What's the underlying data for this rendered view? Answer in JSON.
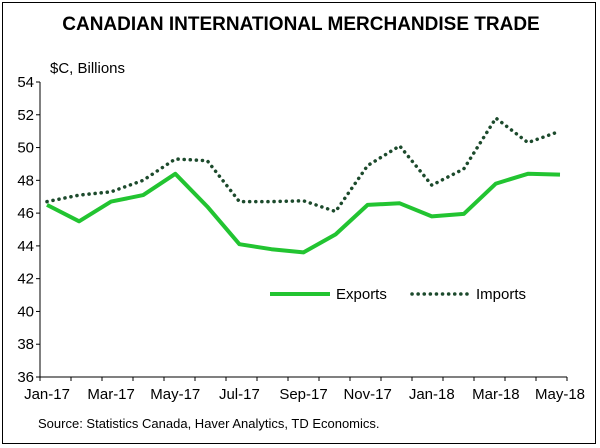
{
  "chart_data": {
    "type": "line",
    "title": "CANADIAN INTERNATIONAL MERCHANDISE TRADE",
    "ylabel": "$C, Billions",
    "xlabel": "",
    "ylim": [
      36,
      54
    ],
    "yticks": [
      36,
      38,
      40,
      42,
      44,
      46,
      48,
      50,
      52,
      54
    ],
    "categories": [
      "Jan-17",
      "Feb-17",
      "Mar-17",
      "Apr-17",
      "May-17",
      "Jun-17",
      "Jul-17",
      "Aug-17",
      "Sep-17",
      "Oct-17",
      "Nov-17",
      "Dec-17",
      "Jan-18",
      "Feb-18",
      "Mar-18",
      "Apr-18",
      "May-18"
    ],
    "xtick_labels": [
      "Jan-17",
      "Mar-17",
      "May-17",
      "Jul-17",
      "Sep-17",
      "Nov-17",
      "Jan-18",
      "Mar-18",
      "May-18"
    ],
    "series": [
      {
        "name": "Exports",
        "style": "solid",
        "color": "#22c431",
        "values": [
          46.5,
          45.5,
          46.7,
          47.1,
          48.4,
          46.4,
          44.1,
          43.8,
          43.6,
          44.7,
          46.5,
          46.6,
          45.8,
          45.95,
          47.8,
          48.4,
          48.35
        ]
      },
      {
        "name": "Imports",
        "style": "dotted",
        "color": "#1c4a2c",
        "values": [
          46.7,
          47.1,
          47.3,
          48.0,
          49.3,
          49.2,
          46.7,
          46.7,
          46.75,
          46.1,
          48.9,
          50.1,
          47.7,
          48.7,
          51.8,
          50.3,
          51.0
        ]
      }
    ],
    "legend": "inside-bottom-right",
    "grid": false
  },
  "source": "Source: Statistics Canada, Haver Analytics, TD Economics."
}
